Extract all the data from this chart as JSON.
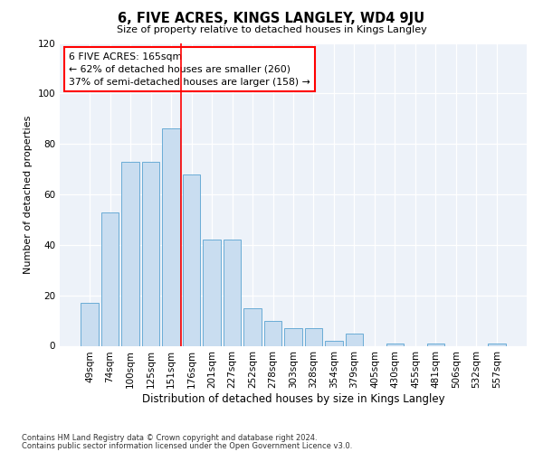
{
  "title": "6, FIVE ACRES, KINGS LANGLEY, WD4 9JU",
  "subtitle": "Size of property relative to detached houses in Kings Langley",
  "xlabel": "Distribution of detached houses by size in Kings Langley",
  "ylabel": "Number of detached properties",
  "categories": [
    "49sqm",
    "74sqm",
    "100sqm",
    "125sqm",
    "151sqm",
    "176sqm",
    "201sqm",
    "227sqm",
    "252sqm",
    "278sqm",
    "303sqm",
    "328sqm",
    "354sqm",
    "379sqm",
    "405sqm",
    "430sqm",
    "455sqm",
    "481sqm",
    "506sqm",
    "532sqm",
    "557sqm"
  ],
  "values": [
    17,
    53,
    73,
    73,
    86,
    68,
    42,
    42,
    15,
    10,
    7,
    7,
    2,
    5,
    0,
    1,
    0,
    1,
    0,
    0,
    1
  ],
  "bar_color": "#c9ddf0",
  "bar_edge_color": "#6aacd6",
  "ref_line_x": 4.5,
  "annotation_text_line1": "6 FIVE ACRES: 165sqm",
  "annotation_text_line2": "← 62% of detached houses are smaller (260)",
  "annotation_text_line3": "37% of semi-detached houses are larger (158) →",
  "ylim": [
    0,
    120
  ],
  "yticks": [
    0,
    20,
    40,
    60,
    80,
    100,
    120
  ],
  "background_color": "#edf2f9",
  "footer_line1": "Contains HM Land Registry data © Crown copyright and database right 2024.",
  "footer_line2": "Contains public sector information licensed under the Open Government Licence v3.0."
}
